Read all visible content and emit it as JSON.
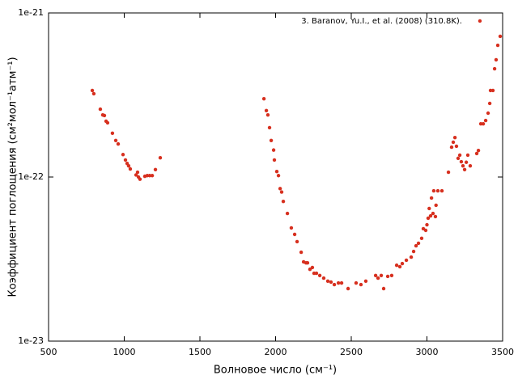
{
  "chart_data": {
    "type": "scatter",
    "log_y": true,
    "legend": "top right",
    "xlabel": "Волновое число (см⁻¹)",
    "ylabel": "Коэффициент поглощения (см²мол⁻¹атм⁻¹)",
    "xlim": [
      500,
      3500
    ],
    "xticks": [
      500,
      1000,
      1500,
      2000,
      2500,
      3000,
      3500
    ],
    "ylim": [
      1e-23,
      1e-21
    ],
    "yticks": [
      {
        "value": 1e-23,
        "label": "1e-23"
      },
      {
        "value": 1e-22,
        "label": "1e-22"
      },
      {
        "value": 1e-21,
        "label": "1e-21"
      }
    ],
    "series": [
      {
        "name": "3. Baranov, Yu.I., et al. (2008) (310.8K).",
        "color": "#d7301f",
        "x": [
          789,
          799,
          842,
          858,
          869,
          880,
          890,
          922,
          944,
          960,
          992,
          1008,
          1019,
          1029,
          1040,
          1078,
          1088,
          1094,
          1104,
          1136,
          1152,
          1168,
          1185,
          1206,
          1238,
          1923,
          1939,
          1949,
          1960,
          1971,
          1987,
          1992,
          2008,
          2019,
          2030,
          2040,
          2051,
          2078,
          2104,
          2126,
          2142,
          2169,
          2185,
          2201,
          2211,
          2227,
          2243,
          2254,
          2270,
          2292,
          2318,
          2345,
          2366,
          2388,
          2415,
          2436,
          2479,
          2532,
          2564,
          2596,
          2661,
          2677,
          2698,
          2714,
          2741,
          2767,
          2800,
          2821,
          2837,
          2864,
          2896,
          2912,
          2928,
          2944,
          2965,
          2976,
          2992,
          3000,
          3008,
          3015,
          3024,
          3030,
          3040,
          3045,
          3056,
          3060,
          3072,
          3099,
          3142,
          3163,
          3174,
          3185,
          3195,
          3206,
          3217,
          3227,
          3238,
          3249,
          3260,
          3270,
          3286,
          3329,
          3340,
          3350,
          3356,
          3372,
          3388,
          3404,
          3415,
          3420,
          3436,
          3447,
          3457,
          3468,
          3484
        ],
        "values": [
          3.37e-22,
          3.22e-22,
          2.59e-22,
          2.39e-22,
          2.37e-22,
          2.19e-22,
          2.14e-22,
          1.85e-22,
          1.67e-22,
          1.59e-22,
          1.37e-22,
          1.27e-22,
          1.21e-22,
          1.17e-22,
          1.12e-22,
          1.03e-22,
          1.07e-22,
          1e-22,
          9.7e-23,
          1.01e-22,
          1.02e-22,
          1.02e-22,
          1.02e-22,
          1.11e-22,
          1.31e-22,
          3e-22,
          2.54e-22,
          2.39e-22,
          2e-22,
          1.67e-22,
          1.46e-22,
          1.27e-22,
          1.08e-22,
          1.02e-22,
          8.5e-23,
          8.1e-23,
          7.1e-23,
          6e-23,
          4.9e-23,
          4.47e-23,
          4.04e-23,
          3.48e-23,
          3.04e-23,
          3e-23,
          3e-23,
          2.74e-23,
          2.81e-23,
          2.59e-23,
          2.59e-23,
          2.51e-23,
          2.42e-23,
          2.32e-23,
          2.29e-23,
          2.21e-23,
          2.26e-23,
          2.26e-23,
          2.09e-23,
          2.26e-23,
          2.21e-23,
          2.32e-23,
          2.51e-23,
          2.42e-23,
          2.51e-23,
          2.09e-23,
          2.48e-23,
          2.51e-23,
          2.9e-23,
          2.84e-23,
          2.97e-23,
          3.11e-23,
          3.25e-23,
          3.52e-23,
          3.81e-23,
          3.95e-23,
          4.23e-23,
          4.84e-23,
          4.73e-23,
          5.12e-23,
          5.61e-23,
          6.43e-23,
          5.8e-23,
          7.45e-23,
          6e-23,
          8.24e-23,
          5.74e-23,
          6.73e-23,
          8.24e-23,
          8.24e-23,
          1.07e-22,
          1.52e-22,
          1.63e-22,
          1.74e-22,
          1.54e-22,
          1.3e-22,
          1.36e-22,
          1.24e-22,
          1.17e-22,
          1.11e-22,
          1.23e-22,
          1.36e-22,
          1.17e-22,
          1.39e-22,
          1.45e-22,
          8.93e-22,
          2.11e-22,
          2.11e-22,
          2.21e-22,
          2.45e-22,
          2.81e-22,
          3.37e-22,
          3.37e-22,
          4.57e-22,
          5.18e-22,
          6.35e-22,
          7.2e-22
        ]
      }
    ]
  }
}
